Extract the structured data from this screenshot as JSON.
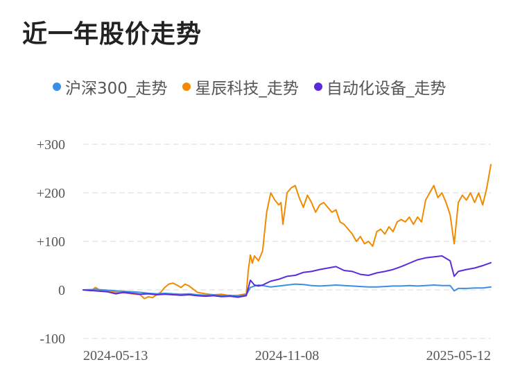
{
  "title": "近一年股价走势",
  "chart_data": {
    "type": "line",
    "title": "近一年股价走势",
    "xlabel": "",
    "ylabel": "",
    "ylim": [
      -100,
      300
    ],
    "yticks": [
      {
        "value": 300,
        "label": "+300"
      },
      {
        "value": 200,
        "label": "+200"
      },
      {
        "value": 100,
        "label": "+100"
      },
      {
        "value": 0,
        "label": "0"
      },
      {
        "value": -100,
        "label": "-100"
      }
    ],
    "xticks": [
      {
        "value": 0,
        "label": "2024-05-13"
      },
      {
        "value": 50,
        "label": "2024-11-08"
      },
      {
        "value": 100,
        "label": "2025-05-12"
      }
    ],
    "grid": true,
    "legend_position": "top",
    "series": [
      {
        "name": "沪深300_走势",
        "color": "#3a8ee6",
        "points": [
          [
            0,
            0
          ],
          [
            3,
            1
          ],
          [
            5,
            0
          ],
          [
            8,
            -2
          ],
          [
            10,
            -3
          ],
          [
            12,
            -4
          ],
          [
            14,
            -5
          ],
          [
            16,
            -7
          ],
          [
            18,
            -8
          ],
          [
            20,
            -7
          ],
          [
            22,
            -8
          ],
          [
            24,
            -9
          ],
          [
            26,
            -8
          ],
          [
            28,
            -10
          ],
          [
            30,
            -11
          ],
          [
            32,
            -10
          ],
          [
            34,
            -12
          ],
          [
            36,
            -11
          ],
          [
            38,
            -13
          ],
          [
            40,
            -10
          ],
          [
            41,
            5
          ],
          [
            42,
            8
          ],
          [
            43,
            10
          ],
          [
            44,
            9
          ],
          [
            46,
            6
          ],
          [
            48,
            8
          ],
          [
            50,
            10
          ],
          [
            52,
            12
          ],
          [
            54,
            11
          ],
          [
            56,
            9
          ],
          [
            58,
            8
          ],
          [
            60,
            9
          ],
          [
            62,
            10
          ],
          [
            64,
            9
          ],
          [
            66,
            8
          ],
          [
            68,
            7
          ],
          [
            70,
            6
          ],
          [
            72,
            6
          ],
          [
            74,
            7
          ],
          [
            76,
            8
          ],
          [
            78,
            8
          ],
          [
            80,
            9
          ],
          [
            82,
            8
          ],
          [
            84,
            9
          ],
          [
            86,
            10
          ],
          [
            88,
            9
          ],
          [
            90,
            9
          ],
          [
            91,
            -2
          ],
          [
            92,
            3
          ],
          [
            94,
            3
          ],
          [
            96,
            4
          ],
          [
            98,
            4
          ],
          [
            100,
            6
          ]
        ]
      },
      {
        "name": "星辰科技_走势",
        "color": "#f08a00",
        "points": [
          [
            0,
            0
          ],
          [
            2,
            -2
          ],
          [
            3,
            5
          ],
          [
            4,
            0
          ],
          [
            6,
            -3
          ],
          [
            8,
            -5
          ],
          [
            10,
            -6
          ],
          [
            12,
            -8
          ],
          [
            14,
            -10
          ],
          [
            15,
            -18
          ],
          [
            16,
            -14
          ],
          [
            17,
            -16
          ],
          [
            18,
            -10
          ],
          [
            19,
            -5
          ],
          [
            20,
            5
          ],
          [
            21,
            12
          ],
          [
            22,
            14
          ],
          [
            23,
            10
          ],
          [
            24,
            5
          ],
          [
            25,
            12
          ],
          [
            26,
            8
          ],
          [
            28,
            -5
          ],
          [
            30,
            -8
          ],
          [
            32,
            -10
          ],
          [
            34,
            -9
          ],
          [
            36,
            -12
          ],
          [
            38,
            -11
          ],
          [
            40,
            -8
          ],
          [
            40.5,
            40
          ],
          [
            41,
            72
          ],
          [
            41.5,
            55
          ],
          [
            42,
            70
          ],
          [
            43,
            60
          ],
          [
            44,
            80
          ],
          [
            45,
            160
          ],
          [
            46,
            200
          ],
          [
            47,
            185
          ],
          [
            48,
            175
          ],
          [
            48.5,
            180
          ],
          [
            49,
            135
          ],
          [
            50,
            200
          ],
          [
            51,
            210
          ],
          [
            52,
            215
          ],
          [
            53,
            190
          ],
          [
            54,
            170
          ],
          [
            55,
            195
          ],
          [
            56,
            180
          ],
          [
            57,
            160
          ],
          [
            58,
            175
          ],
          [
            59,
            180
          ],
          [
            60,
            170
          ],
          [
            61,
            160
          ],
          [
            62,
            165
          ],
          [
            63,
            140
          ],
          [
            64,
            135
          ],
          [
            65,
            125
          ],
          [
            66,
            115
          ],
          [
            67,
            100
          ],
          [
            68,
            110
          ],
          [
            69,
            95
          ],
          [
            70,
            100
          ],
          [
            71,
            90
          ],
          [
            72,
            120
          ],
          [
            73,
            125
          ],
          [
            74,
            115
          ],
          [
            75,
            130
          ],
          [
            76,
            120
          ],
          [
            77,
            140
          ],
          [
            78,
            145
          ],
          [
            79,
            140
          ],
          [
            80,
            150
          ],
          [
            81,
            135
          ],
          [
            82,
            150
          ],
          [
            83,
            140
          ],
          [
            84,
            185
          ],
          [
            85,
            200
          ],
          [
            86,
            215
          ],
          [
            87,
            190
          ],
          [
            88,
            200
          ],
          [
            89,
            180
          ],
          [
            90,
            155
          ],
          [
            91,
            95
          ],
          [
            92,
            180
          ],
          [
            93,
            195
          ],
          [
            94,
            185
          ],
          [
            95,
            200
          ],
          [
            96,
            180
          ],
          [
            97,
            200
          ],
          [
            98,
            175
          ],
          [
            99,
            210
          ],
          [
            100,
            258
          ]
        ]
      },
      {
        "name": "自动化设备_走势",
        "color": "#5b2bd9",
        "points": [
          [
            0,
            0
          ],
          [
            3,
            -2
          ],
          [
            6,
            -4
          ],
          [
            8,
            -8
          ],
          [
            10,
            -5
          ],
          [
            12,
            -7
          ],
          [
            14,
            -9
          ],
          [
            16,
            -8
          ],
          [
            18,
            -10
          ],
          [
            20,
            -9
          ],
          [
            22,
            -10
          ],
          [
            24,
            -11
          ],
          [
            26,
            -10
          ],
          [
            28,
            -12
          ],
          [
            30,
            -13
          ],
          [
            32,
            -12
          ],
          [
            34,
            -14
          ],
          [
            36,
            -13
          ],
          [
            38,
            -15
          ],
          [
            40,
            -12
          ],
          [
            41,
            20
          ],
          [
            42,
            10
          ],
          [
            43,
            8
          ],
          [
            44,
            10
          ],
          [
            46,
            18
          ],
          [
            48,
            22
          ],
          [
            50,
            28
          ],
          [
            52,
            30
          ],
          [
            54,
            36
          ],
          [
            56,
            38
          ],
          [
            58,
            42
          ],
          [
            60,
            45
          ],
          [
            62,
            48
          ],
          [
            64,
            40
          ],
          [
            66,
            38
          ],
          [
            68,
            32
          ],
          [
            70,
            30
          ],
          [
            72,
            35
          ],
          [
            74,
            38
          ],
          [
            76,
            42
          ],
          [
            78,
            48
          ],
          [
            80,
            55
          ],
          [
            82,
            62
          ],
          [
            84,
            66
          ],
          [
            86,
            68
          ],
          [
            88,
            70
          ],
          [
            90,
            60
          ],
          [
            91,
            28
          ],
          [
            92,
            38
          ],
          [
            94,
            42
          ],
          [
            96,
            45
          ],
          [
            98,
            50
          ],
          [
            100,
            56
          ]
        ]
      }
    ]
  }
}
